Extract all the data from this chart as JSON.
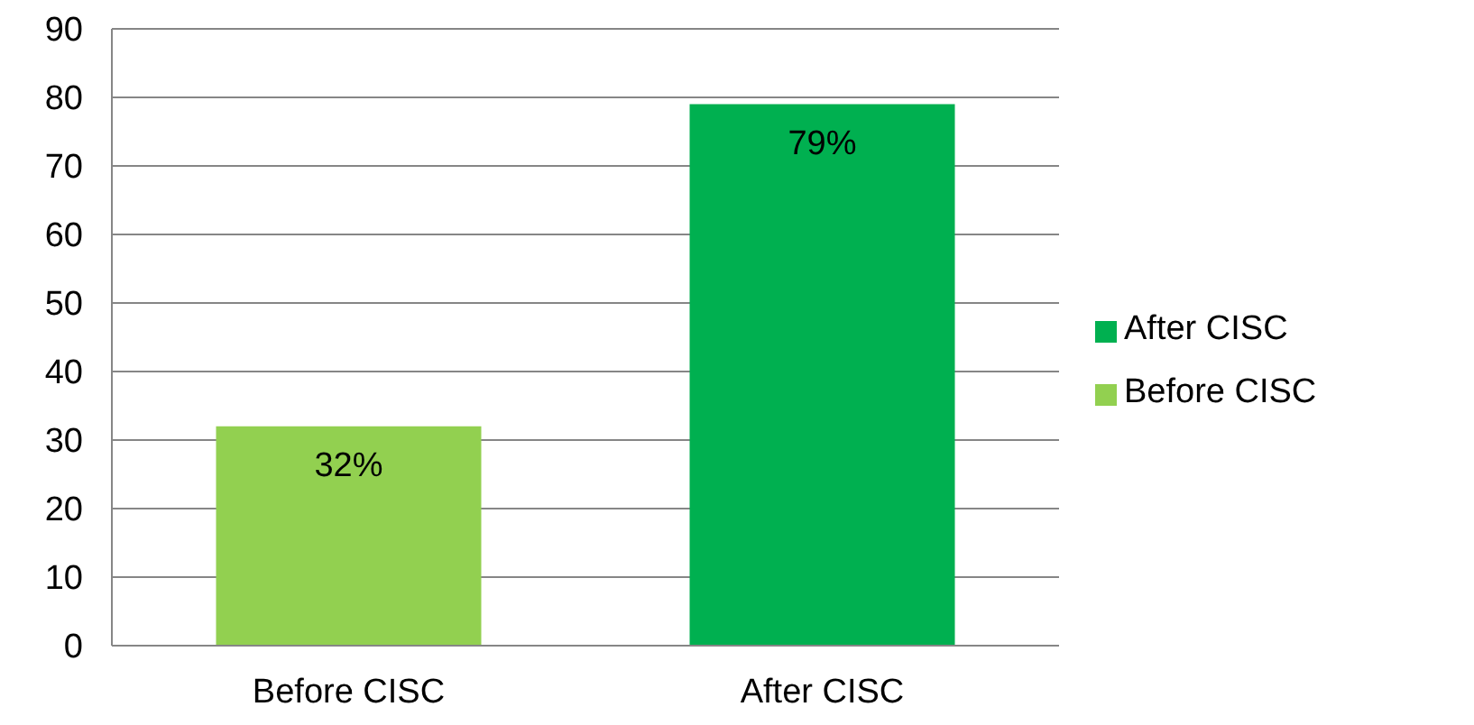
{
  "chart_data": {
    "type": "bar",
    "categories": [
      "Before CISC",
      "After CISC"
    ],
    "series": [
      {
        "name": "Before CISC",
        "color": "#92d050",
        "values": [
          32,
          null
        ],
        "value_labels": [
          "32%",
          null
        ]
      },
      {
        "name": "After CISC",
        "color": "#00b050",
        "values": [
          null,
          79
        ],
        "value_labels": [
          null,
          "79%"
        ]
      }
    ],
    "ylim": [
      0,
      90
    ],
    "yticks": [
      0,
      10,
      20,
      30,
      40,
      50,
      60,
      70,
      80,
      90
    ],
    "grid": "y",
    "legend": "right"
  }
}
